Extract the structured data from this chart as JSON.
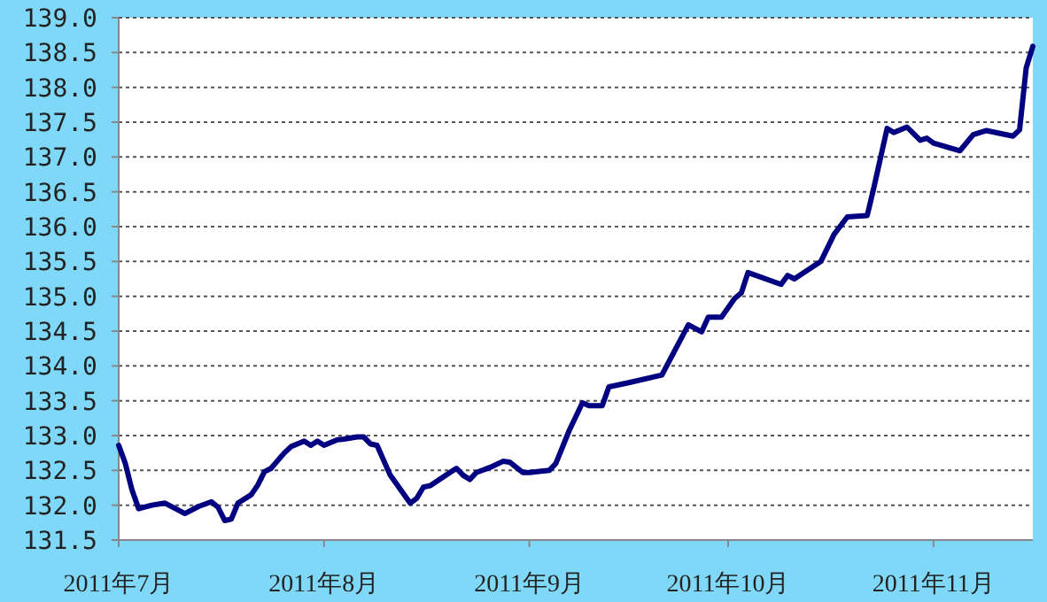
{
  "chart_data": {
    "type": "line",
    "x": [
      "2011-07-01",
      "2011-07-02",
      "2011-07-03",
      "2011-07-04",
      "2011-07-06",
      "2011-07-08",
      "2011-07-11",
      "2011-07-13",
      "2011-07-15",
      "2011-07-16",
      "2011-07-17",
      "2011-07-18",
      "2011-07-19",
      "2011-07-21",
      "2011-07-22",
      "2011-07-23",
      "2011-07-24",
      "2011-07-26",
      "2011-07-27",
      "2011-07-29",
      "2011-07-30",
      "2011-07-31",
      "2011-08-01",
      "2011-08-03",
      "2011-08-04",
      "2011-08-06",
      "2011-08-07",
      "2011-08-08",
      "2011-08-09",
      "2011-08-11",
      "2011-08-14",
      "2011-08-15",
      "2011-08-16",
      "2011-08-17",
      "2011-08-20",
      "2011-08-21",
      "2011-08-22",
      "2011-08-23",
      "2011-08-24",
      "2011-08-26",
      "2011-08-28",
      "2011-08-29",
      "2011-08-31",
      "2011-09-01",
      "2011-09-04",
      "2011-09-05",
      "2011-09-07",
      "2011-09-09",
      "2011-09-10",
      "2011-09-12",
      "2011-09-13",
      "2011-09-16",
      "2011-09-21",
      "2011-09-25",
      "2011-09-27",
      "2011-09-28",
      "2011-09-30",
      "2011-10-02",
      "2011-10-03",
      "2011-10-04",
      "2011-10-09",
      "2011-10-10",
      "2011-10-11",
      "2011-10-15",
      "2011-10-17",
      "2011-10-19",
      "2011-10-22",
      "2011-10-23",
      "2011-10-25",
      "2011-10-26",
      "2011-10-28",
      "2011-10-30",
      "2011-10-31",
      "2011-11-01",
      "2011-11-05",
      "2011-11-07",
      "2011-11-09",
      "2011-11-13",
      "2011-11-14",
      "2011-11-15",
      "2011-11-16"
    ],
    "series": [
      {
        "color": "#000080",
        "values": [
          132.86,
          132.6,
          132.22,
          131.95,
          132.0,
          132.03,
          131.88,
          131.98,
          132.05,
          131.97,
          131.78,
          131.8,
          132.03,
          132.15,
          132.29,
          132.48,
          132.53,
          132.75,
          132.84,
          132.92,
          132.86,
          132.92,
          132.86,
          132.94,
          132.95,
          132.98,
          132.98,
          132.88,
          132.86,
          132.43,
          132.03,
          132.1,
          132.26,
          132.28,
          132.47,
          132.53,
          132.43,
          132.37,
          132.47,
          132.54,
          132.63,
          132.62,
          132.47,
          132.47,
          132.5,
          132.6,
          133.07,
          133.47,
          133.43,
          133.43,
          133.7,
          133.76,
          133.87,
          134.59,
          134.49,
          134.7,
          134.7,
          134.97,
          135.05,
          135.34,
          135.17,
          135.3,
          135.25,
          135.5,
          135.89,
          136.14,
          136.16,
          136.56,
          137.41,
          137.35,
          137.43,
          137.24,
          137.27,
          137.2,
          137.09,
          137.32,
          137.38,
          137.3,
          137.39,
          138.28,
          138.59
        ]
      }
    ],
    "xlim": [
      "2011-07-01",
      "2011-11-16"
    ],
    "xticks": [
      {
        "value": "2011-07-01",
        "label": "2011年7月"
      },
      {
        "value": "2011-08-01",
        "label": "2011年8月"
      },
      {
        "value": "2011-09-01",
        "label": "2011年9月"
      },
      {
        "value": "2011-10-01",
        "label": "2011年10月"
      },
      {
        "value": "2011-11-01",
        "label": "2011年11月"
      }
    ],
    "ylim": [
      131.5,
      139
    ],
    "yticks": [
      {
        "value": 131.5,
        "label": "131.5"
      },
      {
        "value": 132,
        "label": "132.0"
      },
      {
        "value": 132.5,
        "label": "132.5"
      },
      {
        "value": 133,
        "label": "133.0"
      },
      {
        "value": 133.5,
        "label": "133.5"
      },
      {
        "value": 134,
        "label": "134.0"
      },
      {
        "value": 134.5,
        "label": "134.5"
      },
      {
        "value": 135,
        "label": "135.0"
      },
      {
        "value": 135.5,
        "label": "135.5"
      },
      {
        "value": 136,
        "label": "136.0"
      },
      {
        "value": 136.5,
        "label": "136.5"
      },
      {
        "value": 137,
        "label": "137.0"
      },
      {
        "value": 137.5,
        "label": "137.5"
      },
      {
        "value": 138,
        "label": "138.0"
      },
      {
        "value": 138.5,
        "label": "138.5"
      },
      {
        "value": 139,
        "label": "139.0"
      }
    ],
    "grid": "y"
  }
}
